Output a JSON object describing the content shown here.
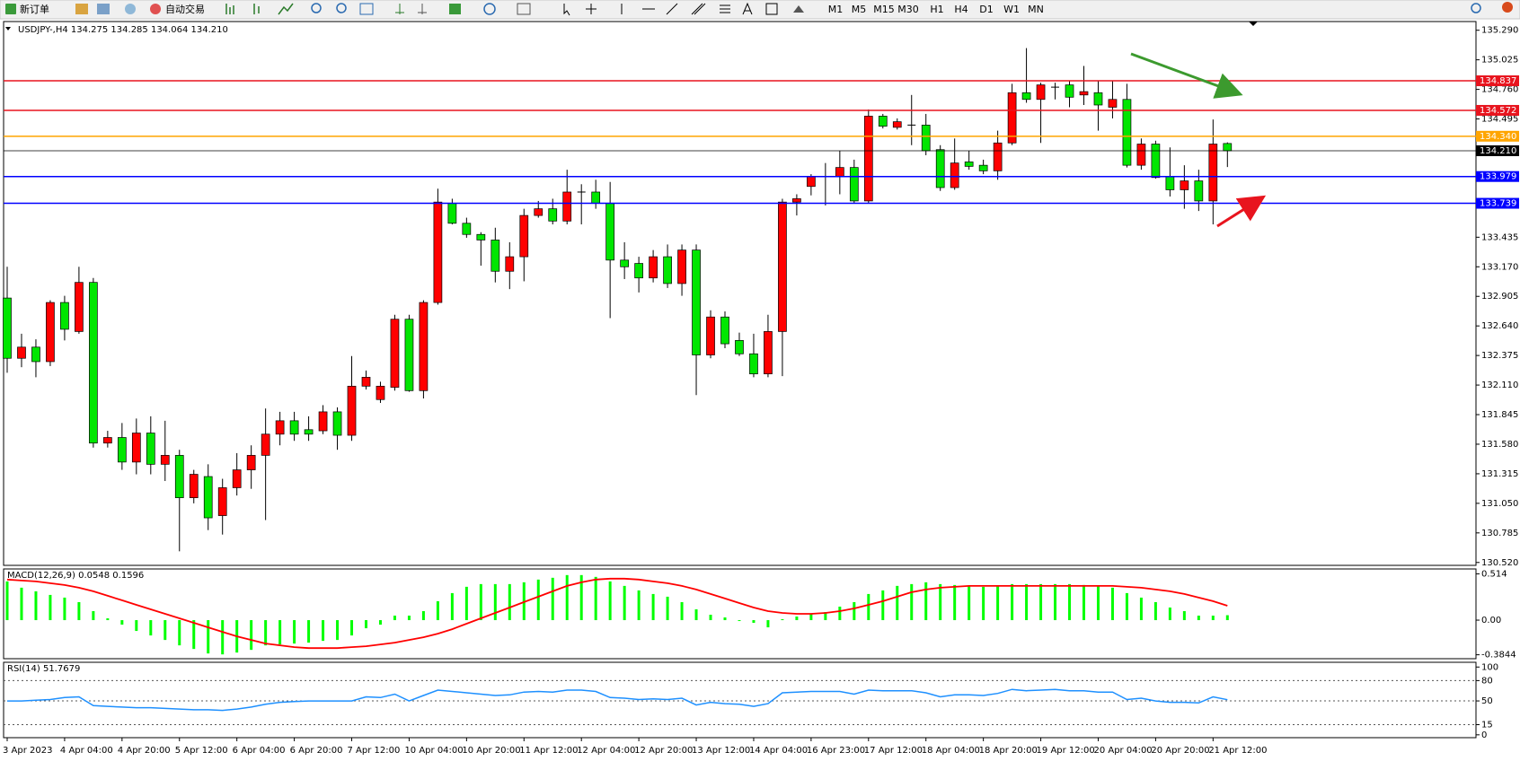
{
  "toolbar": {
    "new_order": "新订单",
    "auto_trading": "自动交易",
    "timeframes": [
      "M1",
      "M5",
      "M15",
      "M30",
      "H1",
      "H4",
      "D1",
      "W1",
      "MN"
    ]
  },
  "chart_data": [
    {
      "type": "candlestick",
      "title": "USDJPY-,H4  134.275 134.285 134.064 134.210",
      "categories": [
        "3 Apr 2023",
        null,
        null,
        null,
        "4 Apr 04:00",
        null,
        null,
        null,
        "4 Apr 20:00",
        null,
        null,
        null,
        "5 Apr 12:00",
        null,
        null,
        null,
        "6 Apr 04:00",
        null,
        null,
        null,
        "6 Apr 20:00",
        null,
        null,
        null,
        "7 Apr 12:00",
        null,
        null,
        null,
        "10 Apr 04:00",
        null,
        null,
        null,
        "10 Apr 20:00",
        null,
        null,
        null,
        "11 Apr 12:00",
        null,
        null,
        null,
        "12 Apr 04:00",
        null,
        null,
        null,
        "12 Apr 20:00",
        null,
        null,
        null,
        "13 Apr 12:00",
        null,
        null,
        null,
        "14 Apr 04:00",
        null,
        null,
        null,
        "16 Apr 23:00",
        null,
        null,
        null,
        "17 Apr 12:00",
        null,
        null,
        null,
        "18 Apr 04:00",
        null,
        null,
        null,
        "18 Apr 20:00",
        null,
        null,
        null,
        "19 Apr 12:00",
        null,
        null,
        null,
        "20 Apr 04:00",
        null,
        null,
        null,
        "20 Apr 20:00",
        null,
        null,
        null,
        "21 Apr 12:00",
        null
      ],
      "open": [
        132.89,
        132.35,
        132.45,
        132.32,
        132.85,
        132.59,
        133.03,
        131.59,
        131.64,
        131.42,
        131.68,
        131.4,
        131.48,
        131.1,
        131.29,
        130.94,
        131.19,
        131.35,
        131.48,
        131.67,
        131.79,
        131.71,
        131.7,
        131.87,
        131.66,
        132.1,
        131.98,
        132.09,
        132.7,
        132.06,
        132.85,
        133.74,
        133.56,
        133.46,
        133.41,
        133.13,
        133.26,
        133.63,
        133.69,
        133.58,
        133.84,
        133.84,
        133.74,
        133.23,
        133.2,
        133.07,
        133.26,
        133.02,
        133.32,
        132.38,
        132.72,
        132.51,
        132.39,
        132.21,
        132.59,
        133.75,
        133.89,
        133.98,
        133.98,
        134.06,
        133.76,
        134.52,
        134.42,
        134.44,
        134.44,
        134.22,
        133.88,
        134.11,
        134.08,
        134.03,
        134.28,
        134.73,
        134.67,
        134.78,
        134.8,
        134.71,
        134.73,
        134.6,
        134.67,
        134.08,
        134.27,
        133.98,
        133.86,
        133.94,
        133.76,
        134.275
      ],
      "high": [
        133.17,
        132.57,
        132.52,
        132.87,
        132.91,
        133.17,
        133.07,
        131.7,
        131.77,
        131.81,
        131.83,
        131.79,
        131.53,
        131.35,
        131.4,
        131.27,
        131.5,
        131.57,
        131.9,
        131.87,
        131.87,
        131.83,
        131.93,
        131.91,
        132.37,
        132.24,
        132.14,
        132.74,
        132.74,
        132.87,
        133.87,
        133.78,
        133.61,
        133.48,
        133.52,
        133.39,
        133.69,
        133.76,
        133.78,
        134.04,
        133.91,
        133.95,
        133.93,
        133.39,
        133.26,
        133.32,
        133.37,
        133.37,
        133.37,
        132.78,
        132.77,
        132.58,
        132.57,
        132.74,
        133.78,
        133.82,
        134.0,
        134.1,
        134.21,
        134.13,
        134.58,
        134.54,
        134.5,
        134.71,
        134.54,
        134.26,
        134.32,
        134.21,
        134.13,
        134.39,
        134.81,
        135.13,
        134.82,
        134.82,
        134.84,
        134.97,
        134.84,
        134.84,
        134.81,
        134.32,
        134.3,
        134.24,
        134.08,
        134.04,
        134.49,
        134.285
      ],
      "low": [
        132.22,
        132.27,
        132.18,
        132.28,
        132.51,
        132.57,
        131.55,
        131.55,
        131.35,
        131.31,
        131.31,
        131.25,
        130.62,
        131.05,
        130.81,
        130.77,
        131.12,
        131.18,
        130.9,
        131.57,
        131.61,
        131.61,
        131.67,
        131.53,
        131.61,
        132.07,
        131.95,
        132.06,
        132.05,
        131.99,
        132.83,
        133.55,
        133.43,
        133.18,
        133.03,
        132.97,
        133.04,
        133.61,
        133.55,
        133.55,
        133.55,
        133.69,
        132.71,
        133.06,
        132.94,
        133.03,
        132.98,
        132.91,
        132.02,
        132.35,
        132.44,
        132.37,
        132.18,
        132.18,
        132.19,
        133.63,
        133.81,
        133.72,
        133.82,
        133.74,
        133.74,
        134.41,
        134.4,
        134.26,
        134.17,
        133.85,
        133.86,
        134.04,
        134.0,
        133.95,
        134.26,
        134.64,
        134.28,
        134.67,
        134.6,
        134.62,
        134.39,
        134.5,
        134.06,
        134.04,
        133.96,
        133.8,
        133.69,
        133.67,
        133.55,
        134.064
      ],
      "close": [
        132.35,
        132.45,
        132.32,
        132.85,
        132.61,
        133.03,
        131.59,
        131.64,
        131.42,
        131.68,
        131.4,
        131.48,
        131.1,
        131.31,
        130.92,
        131.19,
        131.35,
        131.48,
        131.67,
        131.79,
        131.67,
        131.67,
        131.87,
        131.66,
        132.1,
        132.18,
        132.1,
        132.7,
        132.06,
        132.85,
        133.75,
        133.56,
        133.46,
        133.41,
        133.13,
        133.26,
        133.63,
        133.69,
        133.58,
        133.84,
        133.84,
        133.74,
        133.23,
        133.17,
        133.07,
        133.26,
        133.02,
        133.32,
        132.38,
        132.72,
        132.48,
        132.39,
        132.21,
        132.59,
        133.75,
        133.78,
        133.98,
        133.98,
        134.06,
        133.76,
        134.52,
        134.43,
        134.47,
        134.44,
        134.21,
        133.88,
        134.1,
        134.07,
        134.03,
        134.28,
        134.73,
        134.67,
        134.8,
        134.78,
        134.69,
        134.74,
        134.62,
        134.67,
        134.08,
        134.27,
        133.97,
        133.86,
        133.94,
        133.76,
        134.27,
        134.21
      ],
      "up_color": "#ff0000",
      "down_color": "#00e600",
      "doji_color": "#000000",
      "ylim": [
        130.494,
        135.368
      ],
      "yticks": [
        {
          "value": 135.29,
          "label": "135.290"
        },
        135.025,
        {
          "value": 134.76,
          "label": "134.760"
        },
        134.495,
        133.435,
        {
          "value": 133.17,
          "label": "133.170"
        },
        132.905,
        {
          "value": 132.64,
          "label": "132.640"
        },
        132.375,
        {
          "value": 132.11,
          "label": "132.110"
        },
        131.845,
        {
          "value": 131.58,
          "label": "131.580"
        },
        131.315,
        {
          "value": 131.05,
          "label": "131.050"
        },
        130.785,
        {
          "value": 130.52,
          "label": "130.520"
        }
      ],
      "levels": [
        {
          "value": 134.837,
          "color": "#e8141e"
        },
        {
          "value": 134.572,
          "color": "#e8141e"
        },
        {
          "value": 134.34,
          "label": "134.340",
          "color": "#ffa500"
        },
        {
          "value": 134.21,
          "label": "134.210",
          "color": "#000000"
        },
        {
          "value": 133.979,
          "color": "#0000ff"
        },
        {
          "value": 133.739,
          "color": "#0000ff"
        }
      ]
    },
    {
      "type": "macd",
      "title": "MACD(12,26,9) 0.0548 0.1596",
      "values": [
        0.43,
        0.36,
        0.32,
        0.28,
        0.25,
        0.2,
        0.1,
        0.02,
        -0.05,
        -0.12,
        -0.17,
        -0.22,
        -0.28,
        -0.32,
        -0.37,
        -0.38,
        -0.36,
        -0.33,
        -0.28,
        -0.27,
        -0.26,
        -0.25,
        -0.23,
        -0.22,
        -0.17,
        -0.09,
        -0.05,
        0.05,
        0.05,
        0.1,
        0.21,
        0.3,
        0.37,
        0.4,
        0.4,
        0.4,
        0.42,
        0.45,
        0.47,
        0.5,
        0.5,
        0.48,
        0.43,
        0.38,
        0.33,
        0.29,
        0.26,
        0.2,
        0.12,
        0.06,
        0.03,
        -0.01,
        -0.03,
        -0.08,
        0.01,
        0.04,
        0.07,
        0.09,
        0.15,
        0.2,
        0.29,
        0.33,
        0.38,
        0.4,
        0.42,
        0.4,
        0.39,
        0.38,
        0.37,
        0.38,
        0.4,
        0.4,
        0.4,
        0.4,
        0.4,
        0.39,
        0.38,
        0.36,
        0.3,
        0.25,
        0.2,
        0.14,
        0.1,
        0.05,
        0.05,
        0.0548
      ],
      "color": "#00ff00",
      "signal": [
        0.45,
        0.44,
        0.43,
        0.41,
        0.39,
        0.36,
        0.32,
        0.27,
        0.22,
        0.17,
        0.12,
        0.07,
        0.02,
        -0.03,
        -0.08,
        -0.13,
        -0.18,
        -0.22,
        -0.26,
        -0.28,
        -0.3,
        -0.31,
        -0.31,
        -0.31,
        -0.3,
        -0.29,
        -0.27,
        -0.25,
        -0.22,
        -0.19,
        -0.15,
        -0.1,
        -0.04,
        0.02,
        0.08,
        0.14,
        0.2,
        0.26,
        0.32,
        0.38,
        0.42,
        0.45,
        0.46,
        0.46,
        0.45,
        0.43,
        0.41,
        0.38,
        0.34,
        0.29,
        0.24,
        0.19,
        0.14,
        0.1,
        0.08,
        0.07,
        0.07,
        0.08,
        0.1,
        0.13,
        0.17,
        0.21,
        0.26,
        0.31,
        0.34,
        0.36,
        0.37,
        0.38,
        0.38,
        0.38,
        0.38,
        0.38,
        0.38,
        0.38,
        0.38,
        0.38,
        0.38,
        0.38,
        0.37,
        0.36,
        0.34,
        0.32,
        0.29,
        0.25,
        0.21,
        0.1596
      ],
      "signal_color": "#ff0000",
      "ylim": [
        -0.428,
        0.568
      ],
      "yticks": [
        0.514,
        {
          "value": 0,
          "label": "0.00"
        },
        -0.3844
      ]
    },
    {
      "type": "rsi",
      "title": "RSI(14) 51.7679",
      "values": [
        50,
        50,
        51,
        52,
        55,
        56,
        43,
        42,
        41,
        40,
        40,
        39,
        38,
        37,
        37,
        36,
        38,
        41,
        45,
        48,
        49,
        50,
        50,
        50,
        50,
        56,
        55,
        60,
        50,
        58,
        66,
        64,
        62,
        60,
        58,
        59,
        63,
        64,
        63,
        66,
        66,
        64,
        55,
        54,
        52,
        53,
        52,
        54,
        44,
        48,
        46,
        45,
        42,
        46,
        62,
        63,
        64,
        64,
        64,
        60,
        66,
        65,
        65,
        65,
        62,
        56,
        59,
        59,
        58,
        61,
        67,
        65,
        66,
        67,
        65,
        65,
        63,
        63,
        52,
        54,
        50,
        48,
        48,
        47,
        56,
        51.7679
      ],
      "color": "#1e90ff",
      "ylim": [
        -4.2,
        107
      ],
      "yticks": [
        100,
        80,
        50,
        15,
        0
      ],
      "levels": [
        80,
        50,
        15
      ]
    }
  ]
}
